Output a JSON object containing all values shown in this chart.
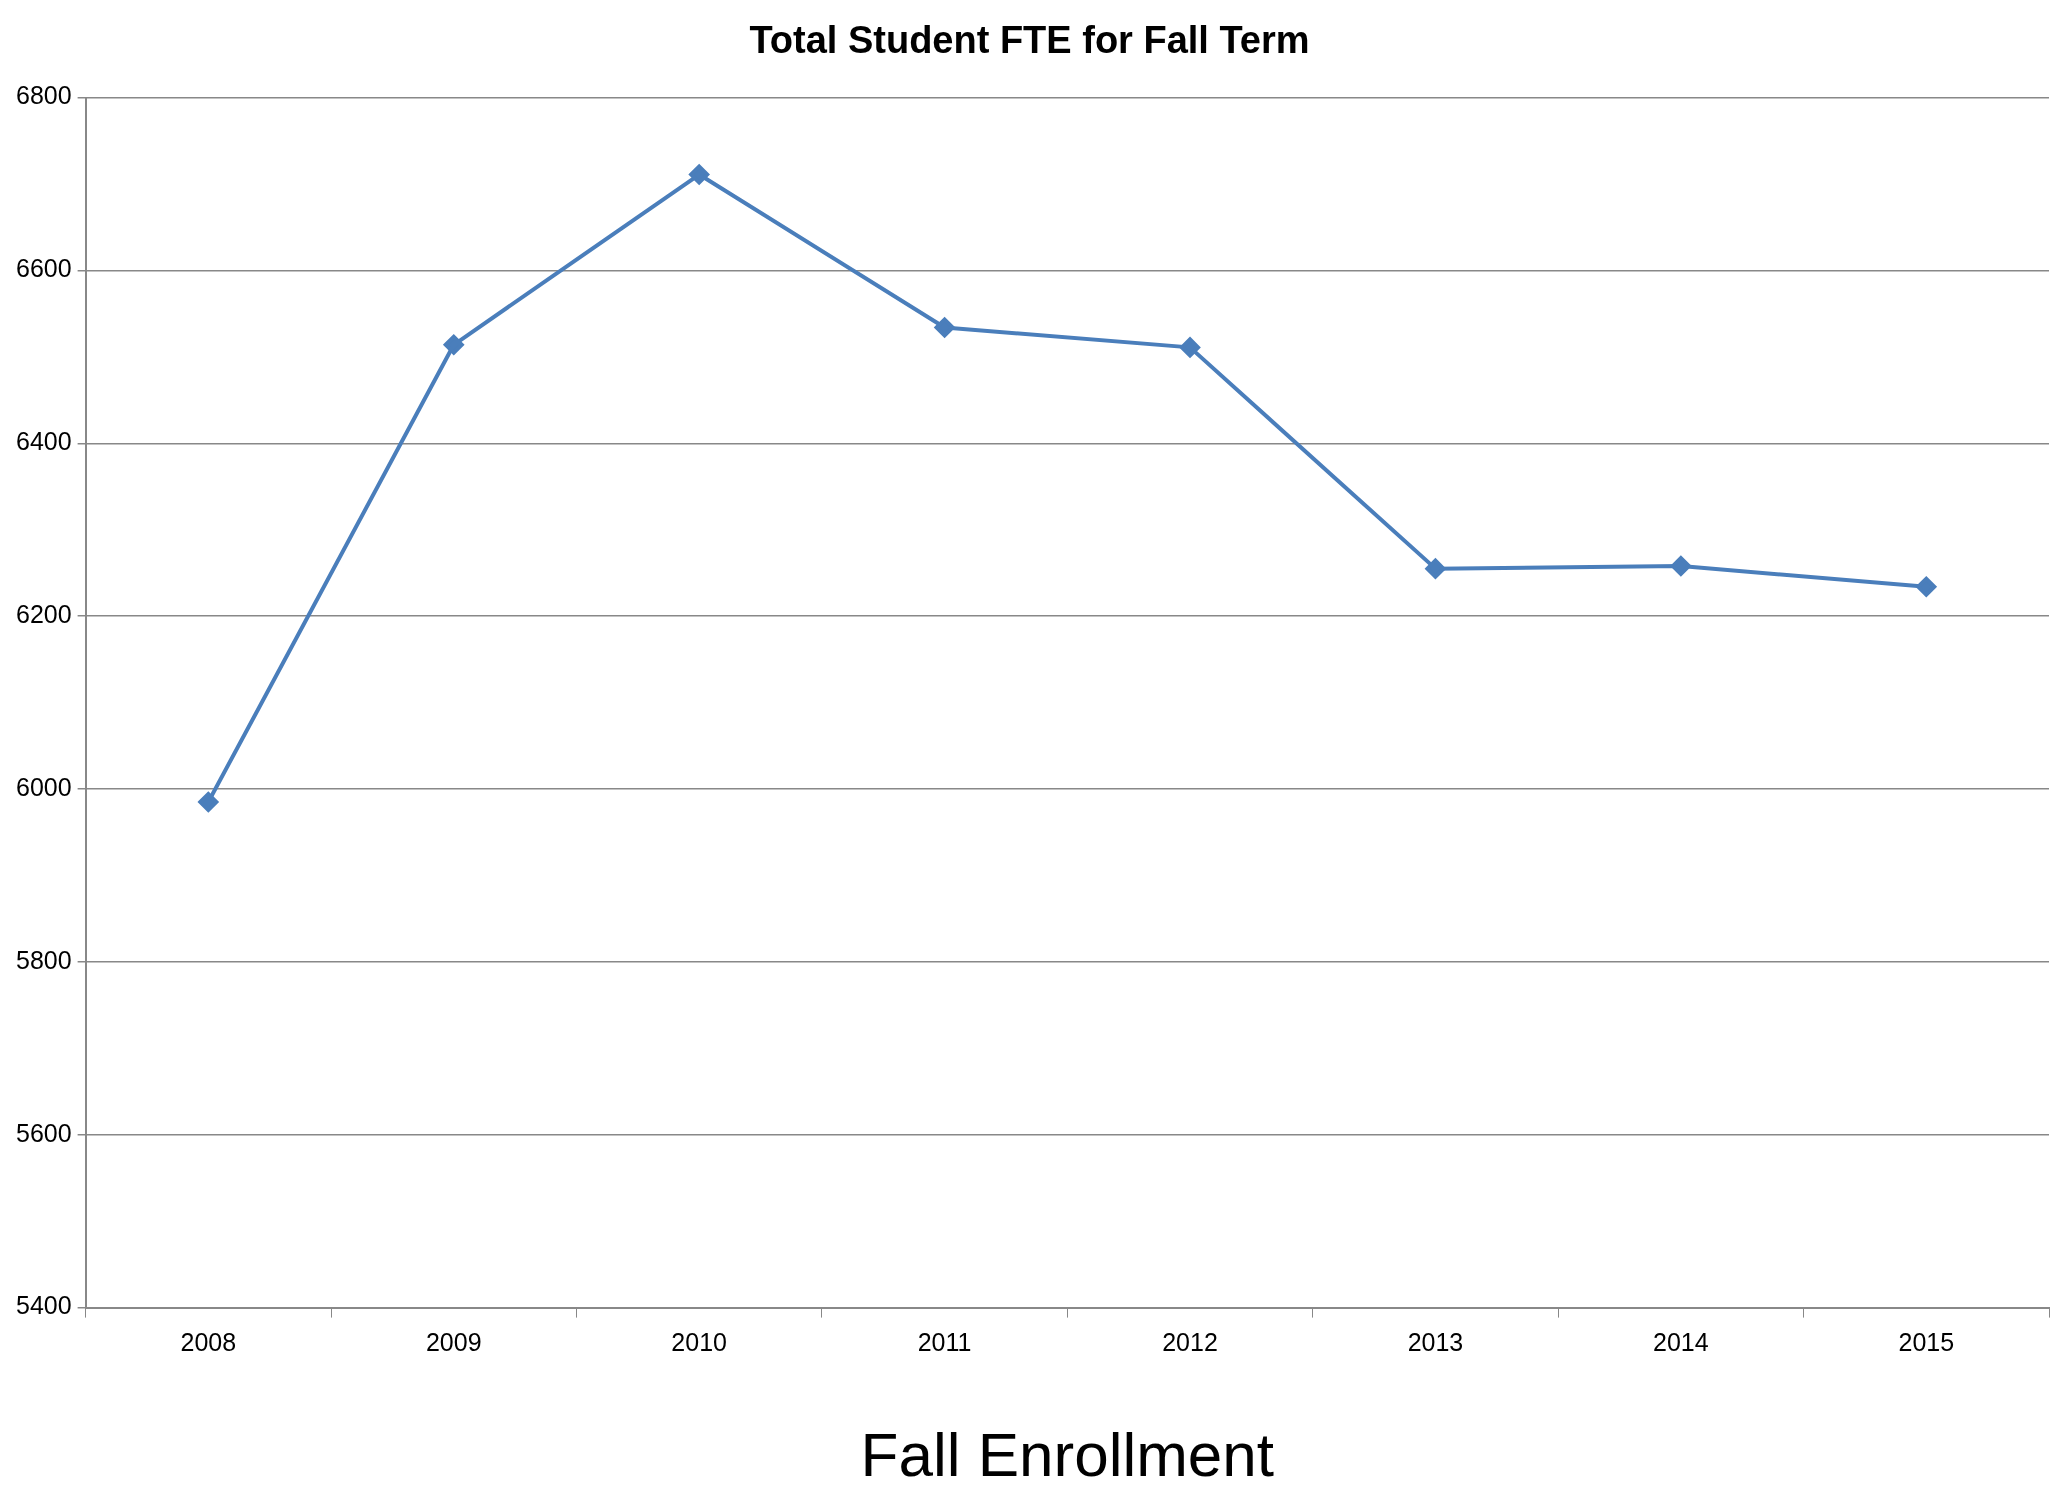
{
  "chart_data": {
    "type": "line",
    "title": "Total Student FTE for Fall Term",
    "xlabel": "Fall Enrollment",
    "categories": [
      "2008",
      "2009",
      "2010",
      "2011",
      "2012",
      "2013",
      "2014",
      "2015"
    ],
    "series": [
      {
        "color": "#4a7ebb",
        "values": [
          5985,
          6514,
          6711,
          6534,
          6511,
          6255,
          6258,
          6234
        ]
      }
    ],
    "ylim": [
      5400,
      6800
    ],
    "yticks": [
      5400,
      5600,
      5800,
      6000,
      6200,
      6400,
      6600,
      6800
    ],
    "grid": "y",
    "legend": false,
    "marker": "diamond",
    "line_style": "solid"
  }
}
